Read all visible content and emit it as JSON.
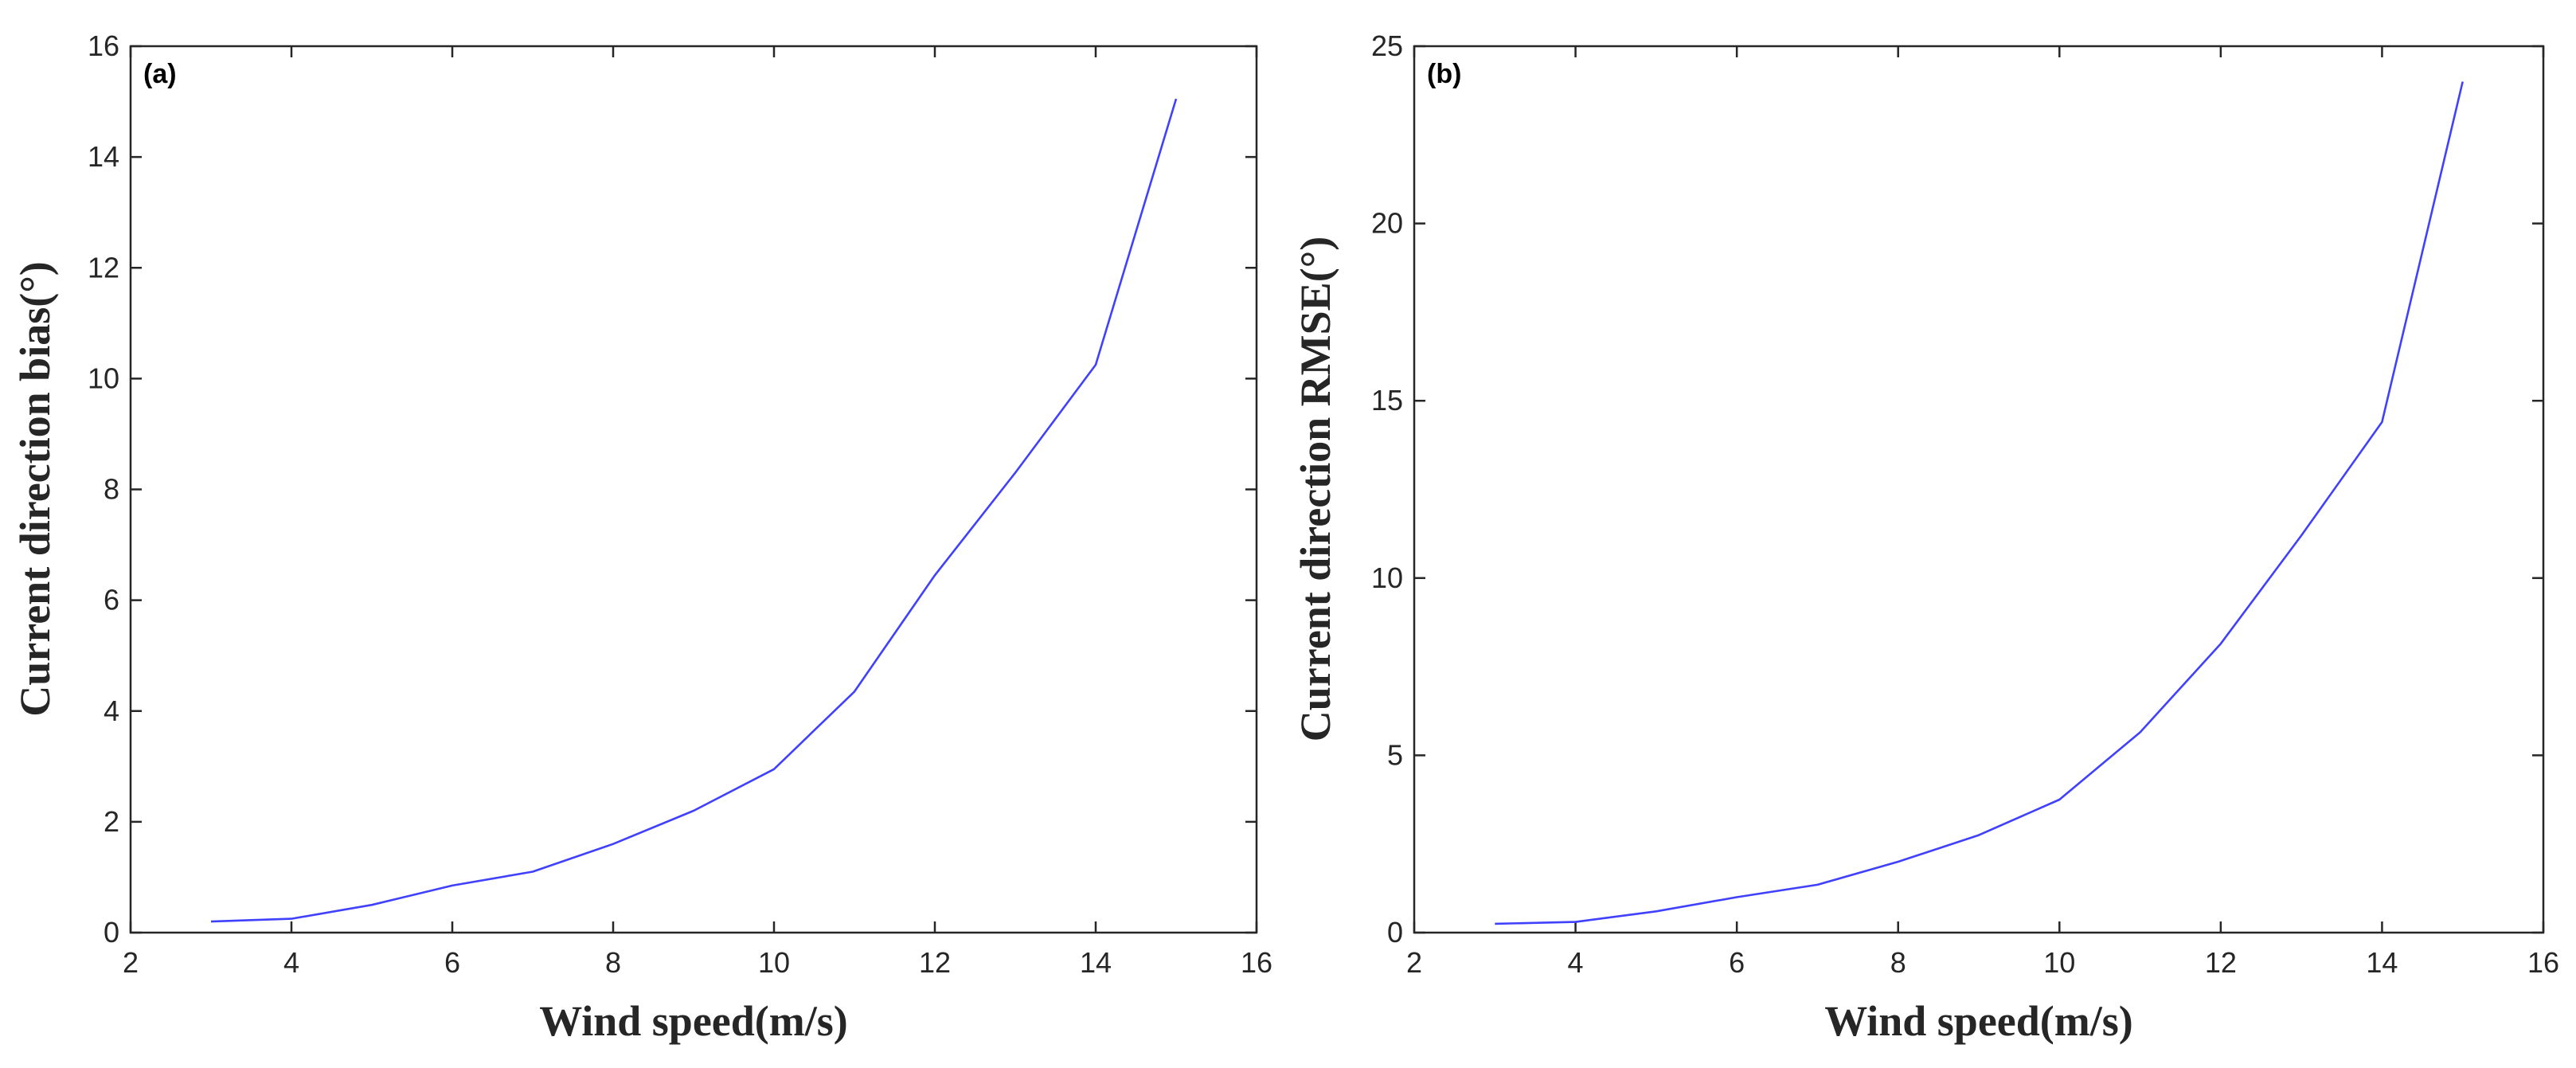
{
  "chart_data": [
    {
      "type": "line",
      "panel_label": "(a)",
      "xlabel": "Wind speed(m/s)",
      "ylabel": "Current direction bias(°)",
      "xlim": [
        2,
        16
      ],
      "ylim": [
        0,
        16
      ],
      "xticks": [
        2,
        4,
        6,
        8,
        10,
        12,
        14,
        16
      ],
      "yticks": [
        0,
        2,
        4,
        6,
        8,
        10,
        12,
        14,
        16
      ],
      "grid": false,
      "series": [
        {
          "name": "Current direction bias",
          "color": "#4040ff",
          "x": [
            3,
            4,
            5,
            6,
            7,
            8,
            9,
            10,
            11,
            12,
            13,
            14,
            15
          ],
          "y": [
            0.2,
            0.25,
            0.5,
            0.85,
            1.1,
            1.6,
            2.2,
            2.95,
            4.35,
            6.45,
            8.3,
            10.25,
            15.05
          ]
        }
      ]
    },
    {
      "type": "line",
      "panel_label": "(b)",
      "xlabel": "Wind speed(m/s)",
      "ylabel": "Current direction RMSE(°)",
      "xlim": [
        2,
        16
      ],
      "ylim": [
        0,
        25
      ],
      "xticks": [
        2,
        4,
        6,
        8,
        10,
        12,
        14,
        16
      ],
      "yticks": [
        0,
        5,
        10,
        15,
        20,
        25
      ],
      "grid": false,
      "series": [
        {
          "name": "Current direction RMSE",
          "color": "#4040ff",
          "x": [
            3,
            4,
            5,
            6,
            7,
            8,
            9,
            10,
            11,
            12,
            13,
            14,
            15
          ],
          "y": [
            0.25,
            0.3,
            0.6,
            1.0,
            1.35,
            2.0,
            2.75,
            3.75,
            5.65,
            8.15,
            11.2,
            14.4,
            24.0
          ]
        }
      ]
    }
  ]
}
